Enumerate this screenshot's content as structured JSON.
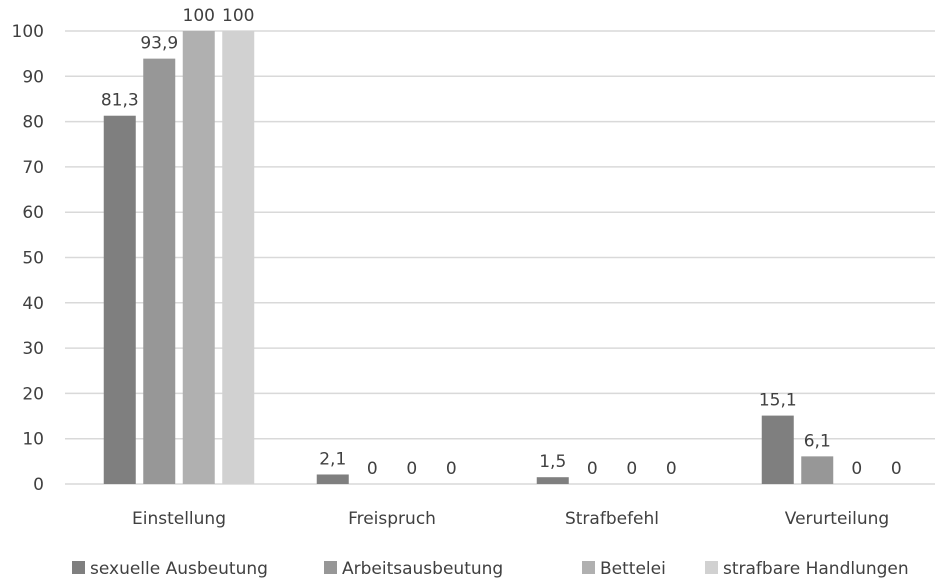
{
  "chart_data": {
    "type": "bar",
    "title": "",
    "xlabel": "",
    "ylabel": "",
    "categories": [
      "Einstellung",
      "Freispruch",
      "Strafbefehl",
      "Verurteilung"
    ],
    "series": [
      {
        "name": "sexuelle Ausbeutung",
        "values": [
          81.3,
          2.1,
          1.5,
          15.1
        ],
        "labels": [
          "81,3",
          "2,1",
          "1,5",
          "15,1"
        ],
        "color": "#7f7f7f"
      },
      {
        "name": "Arbeitsausbeutung",
        "values": [
          93.9,
          0,
          0,
          6.1
        ],
        "labels": [
          "93,9",
          "0",
          "0",
          "6,1"
        ],
        "color": "#979797"
      },
      {
        "name": "Bettelei",
        "values": [
          100,
          0,
          0,
          0
        ],
        "labels": [
          "100",
          "0",
          "0",
          "0"
        ],
        "color": "#b0b0b0"
      },
      {
        "name": "strafbare Handlungen",
        "values": [
          100,
          0,
          0,
          0
        ],
        "labels": [
          "100",
          "0",
          "0",
          "0"
        ],
        "color": "#d1d1d1"
      }
    ],
    "ylim": [
      0,
      100
    ],
    "yticks": [
      "0",
      "10",
      "20",
      "30",
      "40",
      "50",
      "60",
      "70",
      "80",
      "90",
      "100"
    ],
    "grid": true,
    "legend": "bottom",
    "gridline_color": "#d9d9d9",
    "text_color": "#404040"
  }
}
